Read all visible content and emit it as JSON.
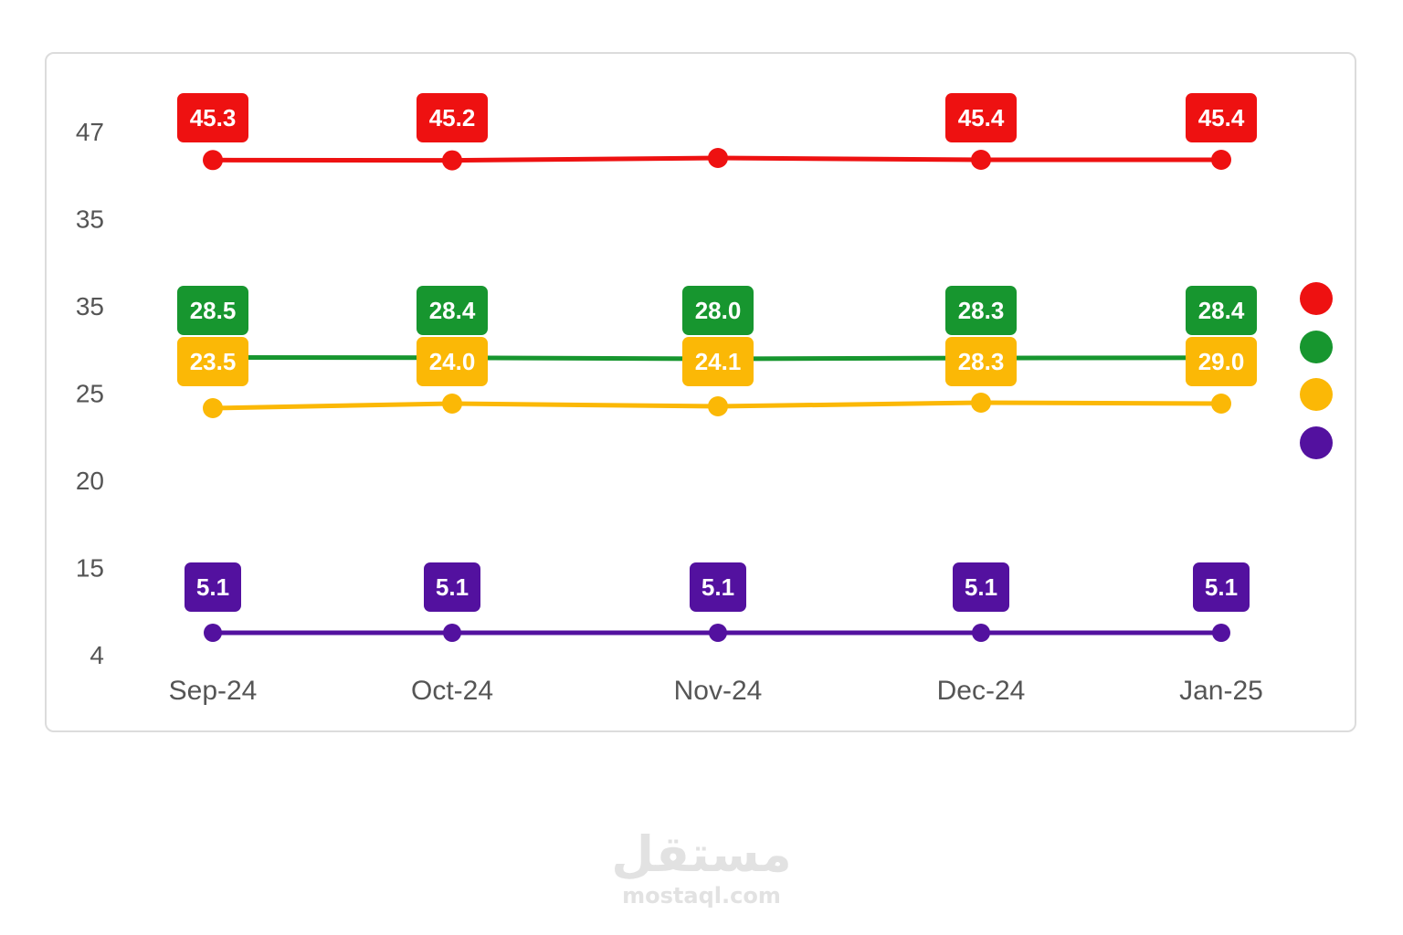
{
  "chart_data": {
    "type": "line",
    "categories": [
      "Sep-24",
      "Oct-24",
      "Nov-24",
      "Dec-24",
      "Jan-25"
    ],
    "y_tick_labels": [
      "47",
      "35",
      "35",
      "25",
      "20",
      "15",
      "4"
    ],
    "grid": false,
    "legend_position": "right",
    "series": [
      {
        "color": "#ee1111",
        "values": [
          45.3,
          45.2,
          null,
          45.4,
          45.4
        ],
        "data_labels": [
          "45.3",
          "45.2",
          "",
          "45.4",
          "45.4"
        ]
      },
      {
        "color": "#17962f",
        "values": [
          28.5,
          28.4,
          28.0,
          28.3,
          28.4
        ],
        "data_labels": [
          "28.5",
          "28.4",
          "28.0",
          "28.3",
          "28.4"
        ]
      },
      {
        "color": "#fbb806",
        "values": [
          23.5,
          24.0,
          24.1,
          28.3,
          29.0
        ],
        "data_labels": [
          "23.5",
          "24.0",
          "24.1",
          "28.3",
          "29.0"
        ]
      },
      {
        "color": "#53119f",
        "values": [
          5.1,
          5.1,
          5.1,
          5.1,
          5.1
        ],
        "data_labels": [
          "5.1",
          "5.1",
          "5.1",
          "5.1",
          "5.1"
        ]
      }
    ]
  },
  "watermark": {
    "arabic": "مستقل",
    "latin": "mostaql.com"
  }
}
